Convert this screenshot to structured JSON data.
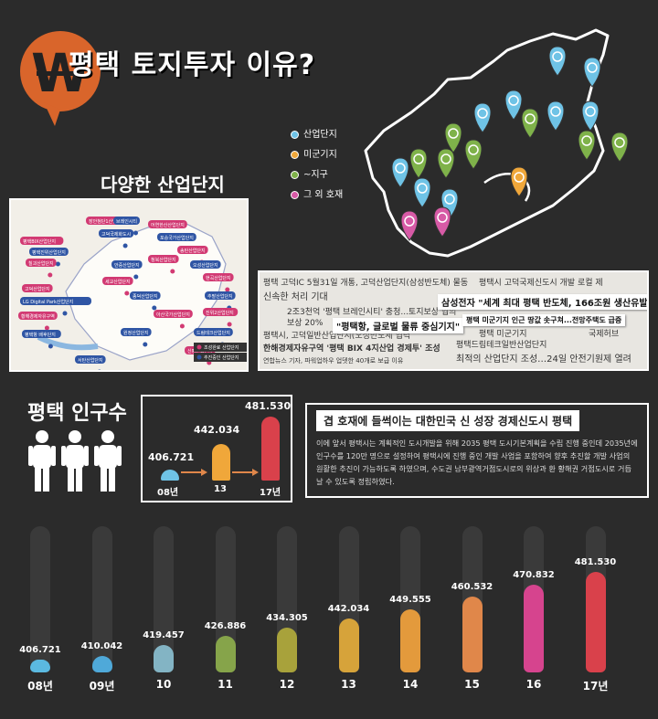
{
  "header": {
    "title": "평택 토지투자 이유?",
    "logo_letter": "W"
  },
  "legend": [
    {
      "label": "산업단지",
      "color": "#6fc3e6"
    },
    {
      "label": "미군기지",
      "color": "#f0a73a"
    },
    {
      "label": "~지구",
      "color": "#7fb24a"
    },
    {
      "label": "그 외 호재",
      "color": "#d75aa6"
    }
  ],
  "industrial": {
    "title": "다양한 산업단지",
    "tags": [
      "장안첨단1산업단지",
      "고덕국제화도시",
      "평택BIX산업단지",
      "평택진위산업단지",
      "칠괴산업단지",
      "브레인시티",
      "어연한산산업단지",
      "포승국가산업단지",
      "송탄산업단지",
      "오성산업단지",
      "현곡산업단지",
      "추팔산업단지",
      "진위2산업단지",
      "드림테크산업단지",
      "고덕산업단지",
      "LG Digital Park산업단지",
      "황해경제자유구역",
      "평택항 배후단지",
      "청북산업단지",
      "안중산업단지",
      "세교산업단지",
      "종덕산업단지",
      "아산국가산업단지",
      "원정산업단지",
      "신평산업단지",
      "서탄산업단지"
    ],
    "legend": [
      "조성완료 산업단지",
      "추진중인 산업단지"
    ]
  },
  "news": {
    "lines": [
      "평택 고덕IC 5월31일 개통, 고덕산업단지(삼성반도체) 물동",
      "신속한 처리 기대",
      "2조3천억 '평택 브레인시티' 충청...토지보상 협의",
      "보상 20%",
      "평택시, 고덕일반산업단지(오성반도체 협력",
      "한해경제자유구역 '평택 BIX 4지산업 경제투' 조성",
      "연합뉴스 기자, 파워업하우 업뎃한 40개로 보급 이유",
      "평택시 고덕국제신도시 개발 로컬 제",
      "평택 미군기지",
      "국제허브",
      "평택드림테크일반산업단지",
      "최적의 산업단지 조성…24일 안전기원제 열려"
    ],
    "headlines": [
      "삼성전자 \"세계 최대 평택 반도체, 166조원 생산유발\"",
      "\"평택항, 글로벌 물류 중심기지\"",
      "평택 미군기지 인근 땅값 솟구쳐...전망주택도 급증"
    ]
  },
  "population": {
    "title": "평택 인구수",
    "mini": [
      {
        "label": "08년",
        "value": "406.721",
        "color": "#6fc3e6"
      },
      {
        "label": "13",
        "value": "442.034",
        "color": "#f0a73a"
      },
      {
        "label": "17년",
        "value": "481.530",
        "color": "#d9414b"
      }
    ]
  },
  "textbox": {
    "title": "겹 호재에 들썩이는 대한민국 신 성장 경제신도시 평택",
    "body": "이에 앞서 평택시는 계획적인 도시개발을 위해 2035 평택 도시기본계획을 수립 진행 중인데 2035년에 인구수를 120만 명으로 설정하여 평택시에 진행 중인 개발 사업을 포함하여 향후 추진할 개발 사업의 원활한 추진이 가능하도록 하였으며, 수도권 남부광역거점도시로의 위상과 환 황해권 거점도시로 거듭날 수 있도록 정립하였다."
  },
  "chart_data": {
    "type": "bar",
    "categories": [
      "08년",
      "09년",
      "10",
      "11",
      "12",
      "13",
      "14",
      "15",
      "16",
      "17년"
    ],
    "values": [
      406.721,
      410.042,
      419.457,
      426.886,
      434.305,
      442.034,
      449.555,
      460.532,
      470.832,
      481.53
    ],
    "value_labels": [
      "406.721",
      "410.042",
      "419.457",
      "426.886",
      "434.305",
      "442.034",
      "449.555",
      "460.532",
      "470.832",
      "481.530"
    ],
    "colors": [
      "#5bb9e0",
      "#4fa9d9",
      "#83b4c4",
      "#86a44a",
      "#a8a23b",
      "#d6a33a",
      "#e39a3c",
      "#e0874a",
      "#d6448e",
      "#d9414b"
    ],
    "ylim": [
      400,
      490
    ]
  }
}
